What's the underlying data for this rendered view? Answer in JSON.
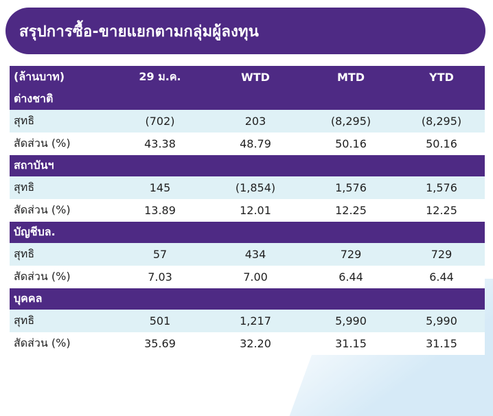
{
  "title": "สรุปการซื้อ-ขายแยกตามกลุ่มผู้ลงทุน",
  "header": {
    "unit": "(ล้านบาท)",
    "columns": [
      "29 ม.ค.",
      "WTD",
      "MTD",
      "YTD"
    ]
  },
  "groups": [
    {
      "name": "ต่างชาติ",
      "net_label": "สุทธิ",
      "net": [
        "(702)",
        "203",
        "(8,295)",
        "(8,295)"
      ],
      "share_label": "สัดส่วน (%)",
      "share": [
        "43.38",
        "48.79",
        "50.16",
        "50.16"
      ]
    },
    {
      "name": "สถาบันฯ",
      "net_label": "สุทธิ",
      "net": [
        "145",
        "(1,854)",
        "1,576",
        "1,576"
      ],
      "share_label": "สัดส่วน (%)",
      "share": [
        "13.89",
        "12.01",
        "12.25",
        "12.25"
      ]
    },
    {
      "name": "บัญชีบล.",
      "net_label": "สุทธิ",
      "net": [
        "57",
        "434",
        "729",
        "729"
      ],
      "share_label": "สัดส่วน (%)",
      "share": [
        "7.03",
        "7.00",
        "6.44",
        "6.44"
      ]
    },
    {
      "name": "บุคคล",
      "net_label": "สุทธิ",
      "net": [
        "501",
        "1,217",
        "5,990",
        "5,990"
      ],
      "share_label": "สัดส่วน (%)",
      "share": [
        "35.69",
        "32.20",
        "31.15",
        "31.15"
      ]
    }
  ],
  "colors": {
    "header_bg": "#4e2a84",
    "alt_row_bg": "#dff1f6",
    "text": "#1f1f1f"
  }
}
